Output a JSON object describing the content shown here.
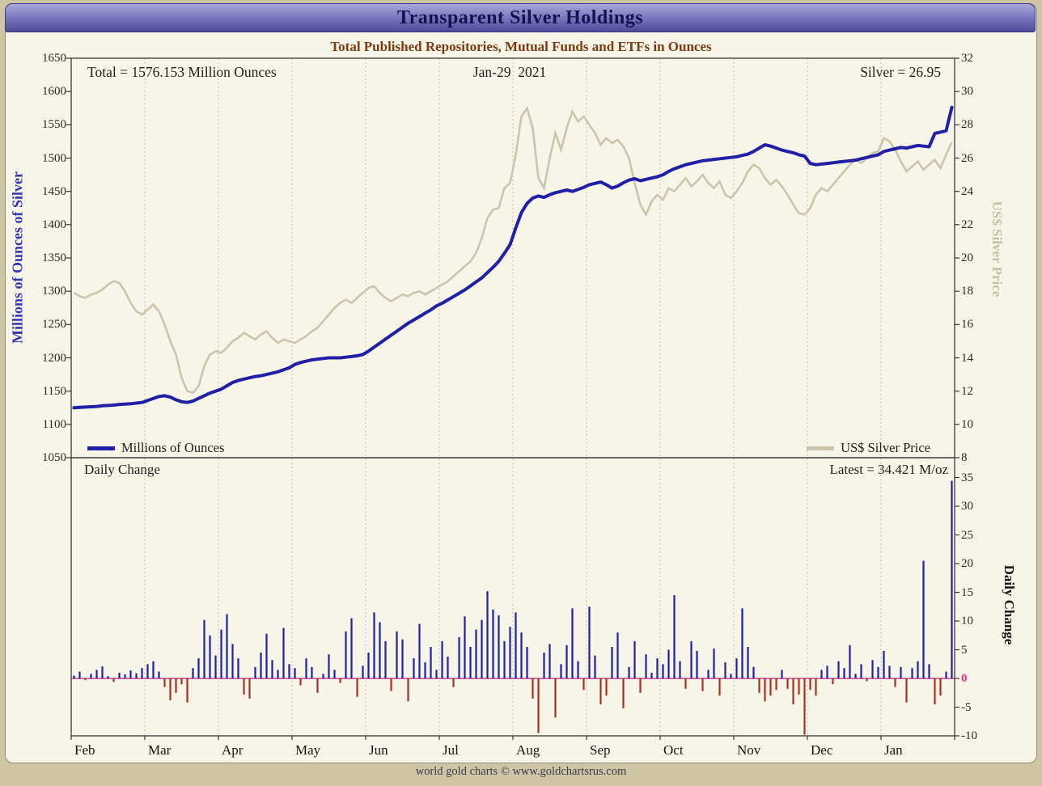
{
  "header": {
    "title": "Transparent Silver Holdings"
  },
  "subtitle": "Total Published Repositories, Mutual Funds and ETFs in Ounces",
  "footer": "world gold charts © www.goldchartsrus.com",
  "top_chart": {
    "total_label": "Total = 1576.153 Million Ounces",
    "date_label": "Jan-29  2021",
    "silver_label": "Silver = 26.95",
    "legend_left": "Millions of Ounces",
    "legend_right": "US$ Silver Price",
    "left_axis_title": "Millions of Ounces of Silver",
    "right_axis_title": "US$ Silver Price"
  },
  "bottom_chart": {
    "label": "Daily Change",
    "latest_label": "Latest = 34.421 M/oz",
    "right_axis_title": "Daily Change"
  },
  "colors": {
    "holdings_line": "#1f1fa8",
    "silver_line": "#ccc5ab",
    "positive_bar": "#1f1fa8",
    "negative_bar": "#a8321f",
    "zero_line": "#cc3d8f",
    "grid_line": "#c6beaa",
    "axis_border": "#3a3a3a",
    "header_accent": "#7b77bd"
  },
  "chart_data": [
    {
      "type": "line",
      "title": "Total Published Repositories, Mutual Funds and ETFs in Ounces",
      "x_categories": [
        "Feb",
        "Mar",
        "Apr",
        "May",
        "Jun",
        "Jul",
        "Aug",
        "Sep",
        "Oct",
        "Nov",
        "Dec",
        "Jan"
      ],
      "ylabel_left": "Millions of Ounces of Silver",
      "ylabel_right": "US$ Silver Price",
      "ylim_left": [
        1050,
        1650
      ],
      "ylim_right": [
        8,
        32
      ],
      "ticks_left": [
        1650,
        1600,
        1550,
        1500,
        1450,
        1400,
        1350,
        1300,
        1250,
        1200,
        1150,
        1100,
        1050
      ],
      "ticks_right": [
        32,
        30,
        28,
        26,
        24,
        22,
        20,
        18,
        16,
        14,
        12,
        10,
        8
      ],
      "annotations": {
        "total": 1576.153,
        "date": "Jan-29 2021",
        "silver_price": 26.95
      },
      "series": [
        {
          "name": "Millions of Ounces",
          "axis": "left",
          "values": [
            1125,
            1125.5,
            1126,
            1126.5,
            1127,
            1128,
            1128.5,
            1129,
            1130,
            1130.5,
            1131,
            1132,
            1133,
            1136,
            1139,
            1142,
            1143,
            1141,
            1137,
            1134,
            1133,
            1135,
            1139,
            1143,
            1147,
            1150,
            1153,
            1158,
            1163,
            1166,
            1168,
            1170,
            1172,
            1173,
            1175,
            1177,
            1179,
            1182,
            1185,
            1190,
            1193,
            1195,
            1197,
            1198,
            1199,
            1200,
            1200,
            1200,
            1201,
            1202,
            1203,
            1205,
            1210,
            1216,
            1222,
            1228,
            1234,
            1240,
            1246,
            1252,
            1257,
            1262,
            1267,
            1272,
            1278,
            1282,
            1287,
            1292,
            1297,
            1302,
            1308,
            1314,
            1320,
            1328,
            1336,
            1345,
            1357,
            1370,
            1395,
            1418,
            1432,
            1440,
            1443,
            1441,
            1445,
            1448,
            1450,
            1452,
            1450,
            1453,
            1456,
            1460,
            1462,
            1464,
            1460,
            1455,
            1458,
            1463,
            1467,
            1469,
            1466,
            1468,
            1470,
            1472,
            1475,
            1480,
            1484,
            1487,
            1490,
            1492,
            1494,
            1496,
            1497,
            1498,
            1499,
            1500,
            1501,
            1502,
            1504,
            1506,
            1510,
            1515,
            1520,
            1518,
            1515,
            1512,
            1510,
            1508,
            1505,
            1503,
            1492,
            1490,
            1491,
            1492,
            1493,
            1494,
            1495,
            1496,
            1497,
            1499,
            1501,
            1503,
            1505,
            1510,
            1512,
            1514,
            1516,
            1515,
            1517,
            1519,
            1518,
            1517,
            1537,
            1539,
            1541,
            1576.153
          ]
        },
        {
          "name": "US$ Silver Price",
          "axis": "right",
          "values": [
            17.9,
            17.7,
            17.6,
            17.8,
            17.9,
            18.1,
            18.4,
            18.6,
            18.5,
            18.0,
            17.3,
            16.8,
            16.6,
            16.9,
            17.2,
            16.8,
            16.0,
            15.0,
            14.2,
            12.8,
            12.0,
            11.9,
            12.3,
            13.5,
            14.2,
            14.4,
            14.3,
            14.6,
            15.0,
            15.2,
            15.5,
            15.3,
            15.1,
            15.4,
            15.6,
            15.2,
            14.9,
            15.1,
            15.0,
            14.9,
            15.1,
            15.3,
            15.6,
            15.8,
            16.2,
            16.6,
            17.0,
            17.3,
            17.5,
            17.3,
            17.6,
            17.9,
            18.2,
            18.3,
            17.9,
            17.6,
            17.4,
            17.6,
            17.8,
            17.7,
            17.9,
            18.0,
            17.8,
            18.0,
            18.2,
            18.4,
            18.6,
            18.9,
            19.2,
            19.5,
            19.8,
            20.3,
            21.2,
            22.4,
            22.9,
            23.0,
            24.2,
            24.5,
            26.2,
            28.5,
            29.0,
            27.8,
            24.8,
            24.2,
            26.0,
            27.5,
            26.5,
            27.8,
            28.8,
            28.2,
            28.5,
            28.0,
            27.5,
            26.8,
            27.2,
            26.9,
            27.1,
            26.7,
            26.0,
            24.5,
            23.2,
            22.6,
            23.4,
            23.8,
            23.5,
            24.2,
            24.0,
            24.4,
            24.8,
            24.3,
            24.6,
            25.0,
            24.5,
            24.2,
            24.6,
            23.8,
            23.6,
            24.0,
            24.5,
            25.2,
            25.6,
            25.4,
            24.8,
            24.4,
            24.7,
            24.3,
            23.8,
            23.2,
            22.7,
            22.6,
            23.0,
            23.8,
            24.2,
            24.0,
            24.4,
            24.8,
            25.2,
            25.6,
            25.9,
            25.7,
            26.0,
            26.3,
            26.4,
            27.2,
            27.0,
            26.5,
            25.8,
            25.2,
            25.5,
            25.8,
            25.3,
            25.6,
            25.9,
            25.4,
            26.2,
            26.95
          ]
        }
      ]
    },
    {
      "type": "bar",
      "title": "Daily Change",
      "ylabel_right": "Daily Change",
      "ylim": [
        -10,
        35
      ],
      "ticks_right": [
        35,
        30,
        25,
        20,
        15,
        10,
        5,
        0,
        -5,
        -10
      ],
      "latest": 34.421,
      "values": [
        0.5,
        1.2,
        -0.3,
        0.8,
        1.5,
        2.1,
        0.4,
        -0.6,
        1.0,
        0.7,
        1.4,
        0.9,
        1.8,
        2.5,
        3.0,
        1.2,
        -1.5,
        -3.8,
        -2.5,
        -1.0,
        -4.2,
        1.8,
        3.5,
        10.2,
        7.5,
        4.0,
        8.5,
        11.2,
        6.0,
        3.5,
        -2.8,
        -3.5,
        2.0,
        4.5,
        7.8,
        3.2,
        1.5,
        8.8,
        2.5,
        1.8,
        -1.2,
        3.5,
        2.0,
        -2.5,
        0.8,
        4.2,
        1.5,
        -0.8,
        8.2,
        10.5,
        -3.2,
        2.2,
        4.5,
        11.5,
        9.8,
        6.5,
        -2.2,
        8.2,
        6.8,
        -4.0,
        3.5,
        9.5,
        2.8,
        5.5,
        1.5,
        6.5,
        3.8,
        -1.5,
        7.2,
        10.8,
        5.5,
        8.5,
        10.2,
        15.2,
        12.0,
        11.0,
        6.5,
        9.0,
        11.5,
        8.0,
        5.5,
        -3.5,
        -9.5,
        4.5,
        6.0,
        -6.8,
        2.5,
        5.8,
        12.2,
        3.0,
        -2.0,
        12.5,
        4.0,
        -4.5,
        -3.0,
        5.5,
        8.0,
        -5.2,
        2.0,
        6.5,
        -2.5,
        4.2,
        1.0,
        3.5,
        2.5,
        5.0,
        14.5,
        3.0,
        -1.8,
        6.5,
        4.8,
        -2.2,
        1.5,
        5.2,
        -3.0,
        2.8,
        0.8,
        3.5,
        12.2,
        5.5,
        2.0,
        -2.5,
        -4.0,
        -3.0,
        -2.0,
        1.5,
        -1.8,
        -4.5,
        -2.8,
        -9.8,
        -2.0,
        -3.0,
        1.5,
        2.2,
        -1.0,
        3.0,
        1.8,
        5.8,
        0.8,
        2.5,
        -0.5,
        3.2,
        2.0,
        4.8,
        2.2,
        -1.5,
        2.0,
        -4.2,
        1.8,
        3.0,
        20.5,
        2.5,
        -4.5,
        -3.0,
        1.2,
        34.421
      ]
    }
  ]
}
